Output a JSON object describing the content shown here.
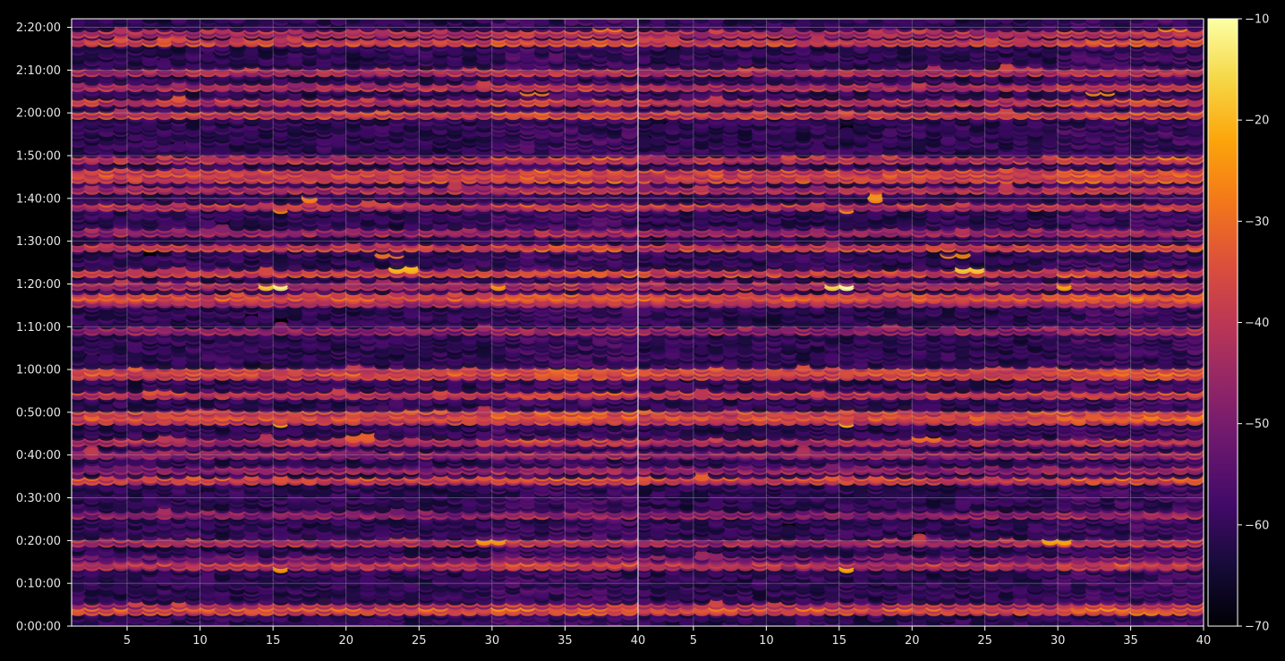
{
  "chart_data": {
    "type": "heatmap",
    "title": "",
    "xlabel": "",
    "ylabel": "",
    "panels": [
      {
        "name": "",
        "xlim": [
          1.2,
          40
        ],
        "ylim": [
          0,
          8520
        ],
        "x_ticks": [
          {
            "value": 5,
            "label": "5"
          },
          {
            "value": 10,
            "label": "10"
          },
          {
            "value": 15,
            "label": "15"
          },
          {
            "value": 20,
            "label": "20"
          },
          {
            "value": 25,
            "label": "25"
          },
          {
            "value": 30,
            "label": "30"
          },
          {
            "value": 35,
            "label": "35"
          },
          {
            "value": 40,
            "label": "40"
          }
        ]
      },
      {
        "name": "",
        "xlim": [
          1.2,
          40
        ],
        "ylim": [
          0,
          8520
        ],
        "x_ticks": [
          {
            "value": 5,
            "label": "5"
          },
          {
            "value": 10,
            "label": "10"
          },
          {
            "value": 15,
            "label": "15"
          },
          {
            "value": 20,
            "label": "20"
          },
          {
            "value": 25,
            "label": "25"
          },
          {
            "value": 30,
            "label": "30"
          },
          {
            "value": 35,
            "label": "35"
          },
          {
            "value": 40,
            "label": "40"
          }
        ]
      }
    ],
    "y_ticks": [
      {
        "value": 0,
        "label": "0:00:00"
      },
      {
        "value": 600,
        "label": "0:10:00"
      },
      {
        "value": 1200,
        "label": "0:20:00"
      },
      {
        "value": 1800,
        "label": "0:30:00"
      },
      {
        "value": 2400,
        "label": "0:40:00"
      },
      {
        "value": 3000,
        "label": "0:50:00"
      },
      {
        "value": 3600,
        "label": "1:00:00"
      },
      {
        "value": 4200,
        "label": "1:10:00"
      },
      {
        "value": 4800,
        "label": "1:20:00"
      },
      {
        "value": 5400,
        "label": "1:30:00"
      },
      {
        "value": 6000,
        "label": "1:40:00"
      },
      {
        "value": 6600,
        "label": "1:50:00"
      },
      {
        "value": 7200,
        "label": "2:00:00"
      },
      {
        "value": 7800,
        "label": "2:10:00"
      },
      {
        "value": 8400,
        "label": "2:20:00"
      }
    ],
    "colorbar": {
      "colormap": "inferno",
      "range": [
        -70,
        -10
      ],
      "ticks": [
        {
          "value": -10,
          "label": "−10"
        },
        {
          "value": -20,
          "label": "−20"
        },
        {
          "value": -30,
          "label": "−30"
        },
        {
          "value": -40,
          "label": "−40"
        },
        {
          "value": -50,
          "label": "−50"
        },
        {
          "value": -60,
          "label": "−60"
        },
        {
          "value": -70,
          "label": "−70"
        }
      ]
    },
    "grid": true,
    "band_profile": [
      {
        "t": 230,
        "v": -40
      },
      {
        "t": 290,
        "v": -48
      },
      {
        "t": 860,
        "v": -45
      },
      {
        "t": 960,
        "v": -55
      },
      {
        "t": 1200,
        "v": -47
      },
      {
        "t": 1600,
        "v": -52
      },
      {
        "t": 2060,
        "v": -42
      },
      {
        "t": 2230,
        "v": -52
      },
      {
        "t": 2420,
        "v": -50
      },
      {
        "t": 2600,
        "v": -47
      },
      {
        "t": 2900,
        "v": -42
      },
      {
        "t": 3000,
        "v": -41
      },
      {
        "t": 3260,
        "v": -45
      },
      {
        "t": 3550,
        "v": -43
      },
      {
        "t": 3610,
        "v": -41
      },
      {
        "t": 4170,
        "v": -50
      },
      {
        "t": 4550,
        "v": -47
      },
      {
        "t": 4660,
        "v": -40
      },
      {
        "t": 4800,
        "v": -47
      },
      {
        "t": 4990,
        "v": -42
      },
      {
        "t": 5350,
        "v": -43
      },
      {
        "t": 5560,
        "v": -50
      },
      {
        "t": 5900,
        "v": -45
      },
      {
        "t": 6160,
        "v": -47
      },
      {
        "t": 6310,
        "v": -42
      },
      {
        "t": 6390,
        "v": -41
      },
      {
        "t": 6570,
        "v": -45
      },
      {
        "t": 7200,
        "v": -42
      },
      {
        "t": 7380,
        "v": -44
      },
      {
        "t": 7600,
        "v": -47
      },
      {
        "t": 7800,
        "v": -46
      },
      {
        "t": 8230,
        "v": -42
      },
      {
        "t": 8340,
        "v": -46
      }
    ],
    "hot_spots": [
      {
        "x": 15.5,
        "t": 4780,
        "v": -12
      },
      {
        "x": 14.5,
        "t": 4780,
        "v": -18
      },
      {
        "x": 24,
        "t": 5020,
        "v": -20
      },
      {
        "x": 23,
        "t": 5220,
        "v": -28
      },
      {
        "x": 15.5,
        "t": 5850,
        "v": -26
      },
      {
        "x": 17.5,
        "t": 6020,
        "v": -27
      },
      {
        "x": 15.5,
        "t": 2850,
        "v": -22
      },
      {
        "x": 15.5,
        "t": 820,
        "v": -24
      },
      {
        "x": 30,
        "t": 1220,
        "v": -24
      },
      {
        "x": 30.5,
        "t": 4780,
        "v": -24
      },
      {
        "x": 33,
        "t": 7500,
        "v": -27
      },
      {
        "x": 36,
        "t": 210,
        "v": -28
      },
      {
        "x": 20.5,
        "t": 3570,
        "v": -28
      },
      {
        "x": 21,
        "t": 2660,
        "v": -32
      },
      {
        "x": 38,
        "t": 6600,
        "v": -28
      },
      {
        "x": 38,
        "t": 8400,
        "v": -28
      }
    ]
  }
}
